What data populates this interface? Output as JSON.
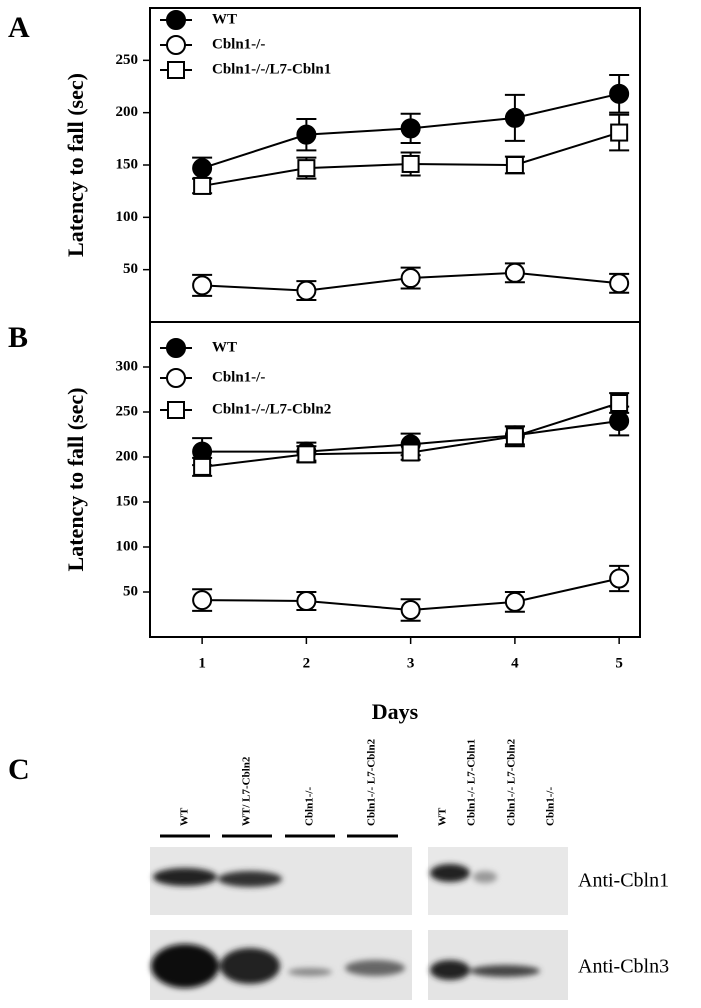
{
  "chart_data": [
    {
      "type": "line",
      "panel": "A",
      "ylabel": "Latency to fall (sec)",
      "xlim": [
        0.5,
        5.2
      ],
      "ylim": [
        0,
        300
      ],
      "yticks": [
        50,
        100,
        150,
        200,
        250
      ],
      "x": [
        1,
        2,
        3,
        4,
        5
      ],
      "series": [
        {
          "name": "WT",
          "color": "#000000",
          "marker": "circle",
          "values": [
            147,
            179,
            185,
            195,
            218
          ],
          "errors": [
            10,
            15,
            14,
            22,
            18
          ]
        },
        {
          "name": "Cbln1-/-",
          "color": "#ffffff",
          "marker": "circle",
          "values": [
            35,
            30,
            42,
            47,
            37
          ],
          "errors": [
            10,
            9,
            10,
            9,
            9
          ]
        },
        {
          "name": "Cbln1-/-/L7-Cbln1",
          "color": "#ffffff",
          "marker": "square",
          "values": [
            130,
            147,
            151,
            150,
            181
          ],
          "errors": [
            7,
            10,
            11,
            8,
            17
          ]
        }
      ]
    },
    {
      "type": "line",
      "panel": "B",
      "ylabel": "Latency to fall (sec)",
      "xlabel": "Days",
      "xlim": [
        0.5,
        5.2
      ],
      "xticks": [
        1,
        2,
        3,
        4,
        5
      ],
      "ylim": [
        0,
        350
      ],
      "yticks": [
        50,
        100,
        150,
        200,
        250,
        300
      ],
      "x": [
        1,
        2,
        3,
        4,
        5
      ],
      "series": [
        {
          "name": "WT",
          "color": "#000000",
          "marker": "circle",
          "values": [
            206,
            206,
            214,
            224,
            240
          ],
          "errors": [
            15,
            10,
            12,
            10,
            16
          ]
        },
        {
          "name": "Cbln1-/-",
          "color": "#ffffff",
          "marker": "circle",
          "values": [
            41,
            40,
            30,
            39,
            65
          ],
          "errors": [
            12,
            10,
            12,
            11,
            14
          ]
        },
        {
          "name": "Cbln1-/-/L7-Cbln2",
          "color": "#ffffff",
          "marker": "square",
          "values": [
            189,
            203,
            205,
            223,
            260
          ],
          "errors": [
            10,
            9,
            8,
            11,
            11
          ]
        }
      ]
    }
  ],
  "blot": {
    "panel": "C",
    "left_lanes": [
      "WT",
      "WT/ L7-Cbln2",
      "Cbln1-/-",
      "Cbln1-/- L7-Cbln2"
    ],
    "right_lanes": [
      "WT",
      "Cbln1-/- L7-Cbln1",
      "Cbln1-/- L7-Cbln2",
      "Cbln1-/-"
    ],
    "rows": [
      "Anti-Cbln1",
      "Anti-Cbln3"
    ]
  }
}
